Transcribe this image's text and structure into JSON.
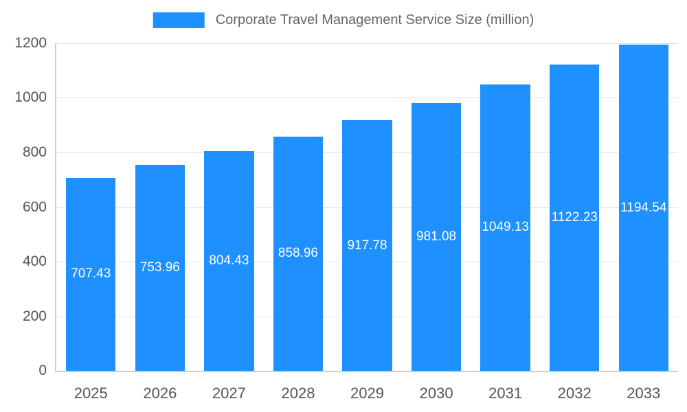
{
  "chart_data": {
    "type": "bar",
    "title": "Corporate Travel Management Service Size (million)",
    "categories": [
      "2025",
      "2026",
      "2027",
      "2028",
      "2029",
      "2030",
      "2031",
      "2032",
      "2033"
    ],
    "values": [
      707.43,
      753.96,
      804.43,
      858.96,
      917.78,
      981.08,
      1049.13,
      1122.23,
      1194.54
    ],
    "value_labels": [
      "707.43",
      "753.96",
      "804.43",
      "858.96",
      "917.78",
      "981.08",
      "1049.13",
      "1122.23",
      "1194.54"
    ],
    "xlabel": "",
    "ylabel": "",
    "ylim": [
      0,
      1200
    ],
    "yticks": [
      0,
      200,
      400,
      600,
      800,
      1000,
      1200
    ],
    "grid": true,
    "legend_position": "top",
    "bar_color": "#1e90ff",
    "bar_label_color": "#ffffff"
  }
}
